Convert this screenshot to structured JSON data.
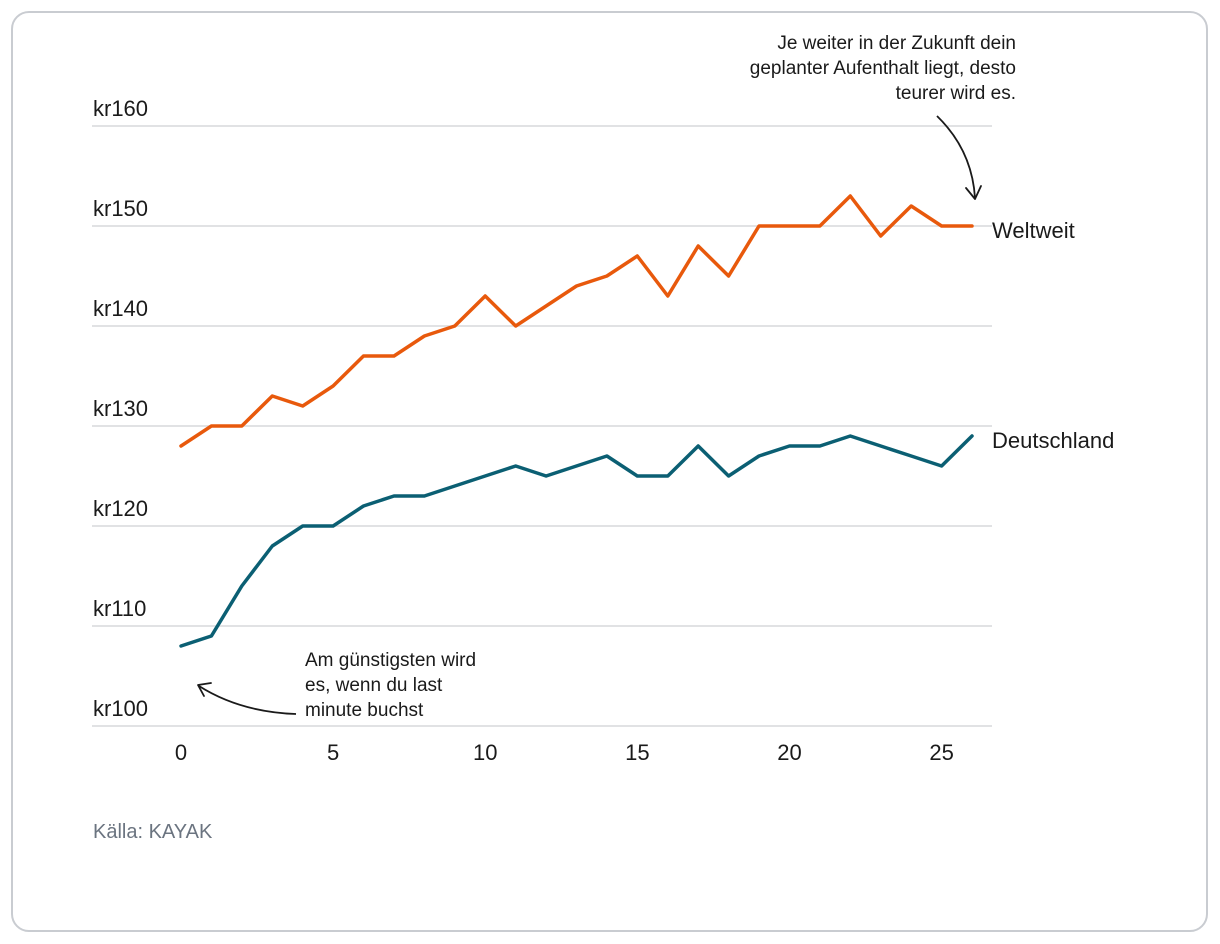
{
  "chart_data": {
    "type": "line",
    "title": "",
    "xlabel": "",
    "ylabel": "",
    "xlim": [
      0,
      26
    ],
    "ylim": [
      100,
      160
    ],
    "x_ticks": [
      "0",
      "5",
      "10",
      "15",
      "20",
      "25"
    ],
    "y_ticks": [
      "kr100",
      "kr110",
      "kr120",
      "kr130",
      "kr140",
      "kr150",
      "kr160"
    ],
    "grid": "horizontal",
    "x": [
      0,
      1,
      2,
      3,
      4,
      5,
      6,
      7,
      8,
      9,
      10,
      11,
      12,
      13,
      14,
      15,
      16,
      17,
      18,
      19,
      20,
      21,
      22,
      23,
      24,
      25,
      26
    ],
    "series": [
      {
        "name": "Weltweit",
        "color": "#e8590c",
        "values": [
          128,
          130,
          130,
          133,
          132,
          134,
          137,
          137,
          139,
          140,
          143,
          140,
          142,
          144,
          145,
          147,
          143,
          148,
          145,
          150,
          150,
          150,
          153,
          149,
          152,
          150,
          150
        ]
      },
      {
        "name": "Deutschland",
        "color": "#0b5f73",
        "values": [
          108,
          109,
          114,
          118,
          120,
          120,
          122,
          123,
          123,
          124,
          125,
          126,
          125,
          126,
          127,
          125,
          125,
          128,
          125,
          127,
          128,
          128,
          129,
          128,
          127,
          126,
          129
        ]
      }
    ],
    "annotations": [
      {
        "lines": [
          "Je weiter in der Zukunft dein",
          "geplanter Aufenthalt liegt, desto",
          "teurer wird es."
        ]
      },
      {
        "lines": [
          "Am günstigsten wird",
          "es, wenn du last",
          "minute buchst"
        ]
      }
    ]
  },
  "source": "Källa: KAYAK"
}
